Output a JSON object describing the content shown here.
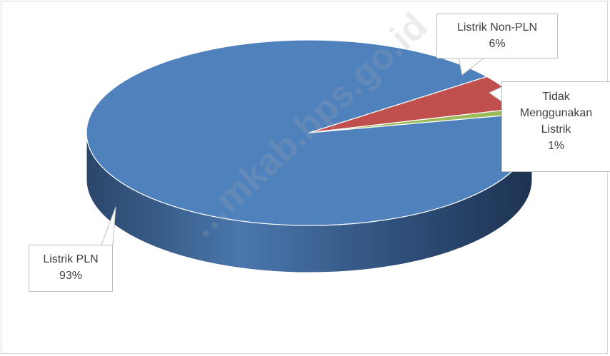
{
  "chart_data": {
    "type": "pie",
    "style": "3d",
    "slices": [
      {
        "label": "Listrik PLN",
        "value": 93,
        "value_label": "93%",
        "color": "#4F81BD"
      },
      {
        "label": "Listrik Non-PLN",
        "value": 6,
        "value_label": "6%",
        "color": "#C0504D"
      },
      {
        "label": "Tidak Menggunakan Listrik",
        "value": 1,
        "value_label": "1%",
        "color": "#9BBB59"
      }
    ],
    "legend": "none",
    "data_labels": "callouts"
  },
  "callouts": {
    "non_pln": {
      "name": "Listrik Non-PLN",
      "pct": "6%"
    },
    "tidak": {
      "line1": "Tidak",
      "line2": "Menggunakan",
      "line3": "Listrik",
      "pct": "1%"
    },
    "pln": {
      "name": "Listrik PLN",
      "pct": "93%"
    }
  },
  "watermark": "…mkab.bps.go.id"
}
